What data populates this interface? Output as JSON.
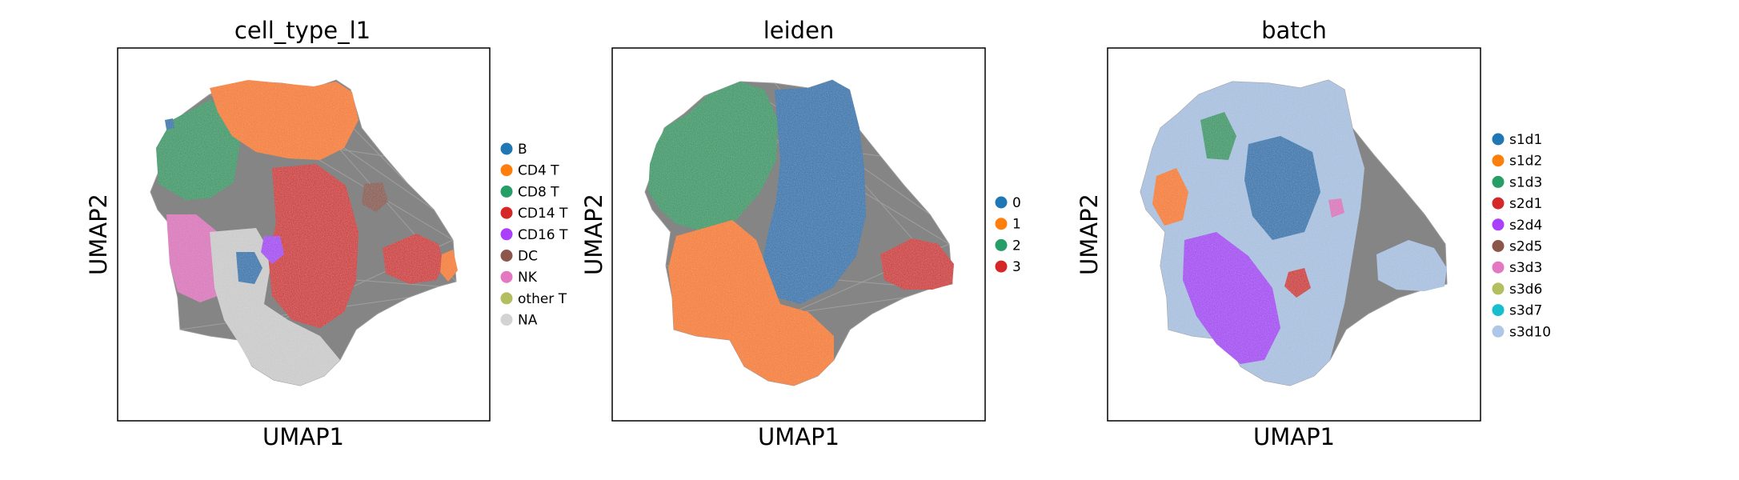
{
  "chart_data": [
    {
      "type": "scatter",
      "title": "cell_type_l1",
      "xlabel": "UMAP1",
      "ylabel": "UMAP2",
      "grid": false,
      "legend_position": "right",
      "series": [
        {
          "name": "B",
          "color": "#1f77b4"
        },
        {
          "name": "CD4 T",
          "color": "#ff7f0e"
        },
        {
          "name": "CD8 T",
          "color": "#279e68"
        },
        {
          "name": "CD14 T",
          "color": "#d62728"
        },
        {
          "name": "CD16 T",
          "color": "#aa40fc"
        },
        {
          "name": "DC",
          "color": "#8c564b"
        },
        {
          "name": "NK",
          "color": "#e377c2"
        },
        {
          "name": "other T",
          "color": "#b5bd61"
        },
        {
          "name": "NA",
          "color": "#d3d3d3"
        }
      ]
    },
    {
      "type": "scatter",
      "title": "leiden",
      "xlabel": "UMAP1",
      "ylabel": "UMAP2",
      "grid": false,
      "legend_position": "right",
      "series": [
        {
          "name": "0",
          "color": "#1f77b4"
        },
        {
          "name": "1",
          "color": "#ff7f0e"
        },
        {
          "name": "2",
          "color": "#279e68"
        },
        {
          "name": "3",
          "color": "#d62728"
        }
      ]
    },
    {
      "type": "scatter",
      "title": "batch",
      "xlabel": "UMAP1",
      "ylabel": "UMAP2",
      "grid": false,
      "legend_position": "right",
      "series": [
        {
          "name": "s1d1",
          "color": "#1f77b4"
        },
        {
          "name": "s1d2",
          "color": "#ff7f0e"
        },
        {
          "name": "s1d3",
          "color": "#279e68"
        },
        {
          "name": "s2d1",
          "color": "#d62728"
        },
        {
          "name": "s2d4",
          "color": "#aa40fc"
        },
        {
          "name": "s2d5",
          "color": "#8c564b"
        },
        {
          "name": "s3d3",
          "color": "#e377c2"
        },
        {
          "name": "s3d6",
          "color": "#b5bd61"
        },
        {
          "name": "s3d7",
          "color": "#17becf"
        },
        {
          "name": "s3d10",
          "color": "#aec7e8"
        }
      ]
    }
  ]
}
